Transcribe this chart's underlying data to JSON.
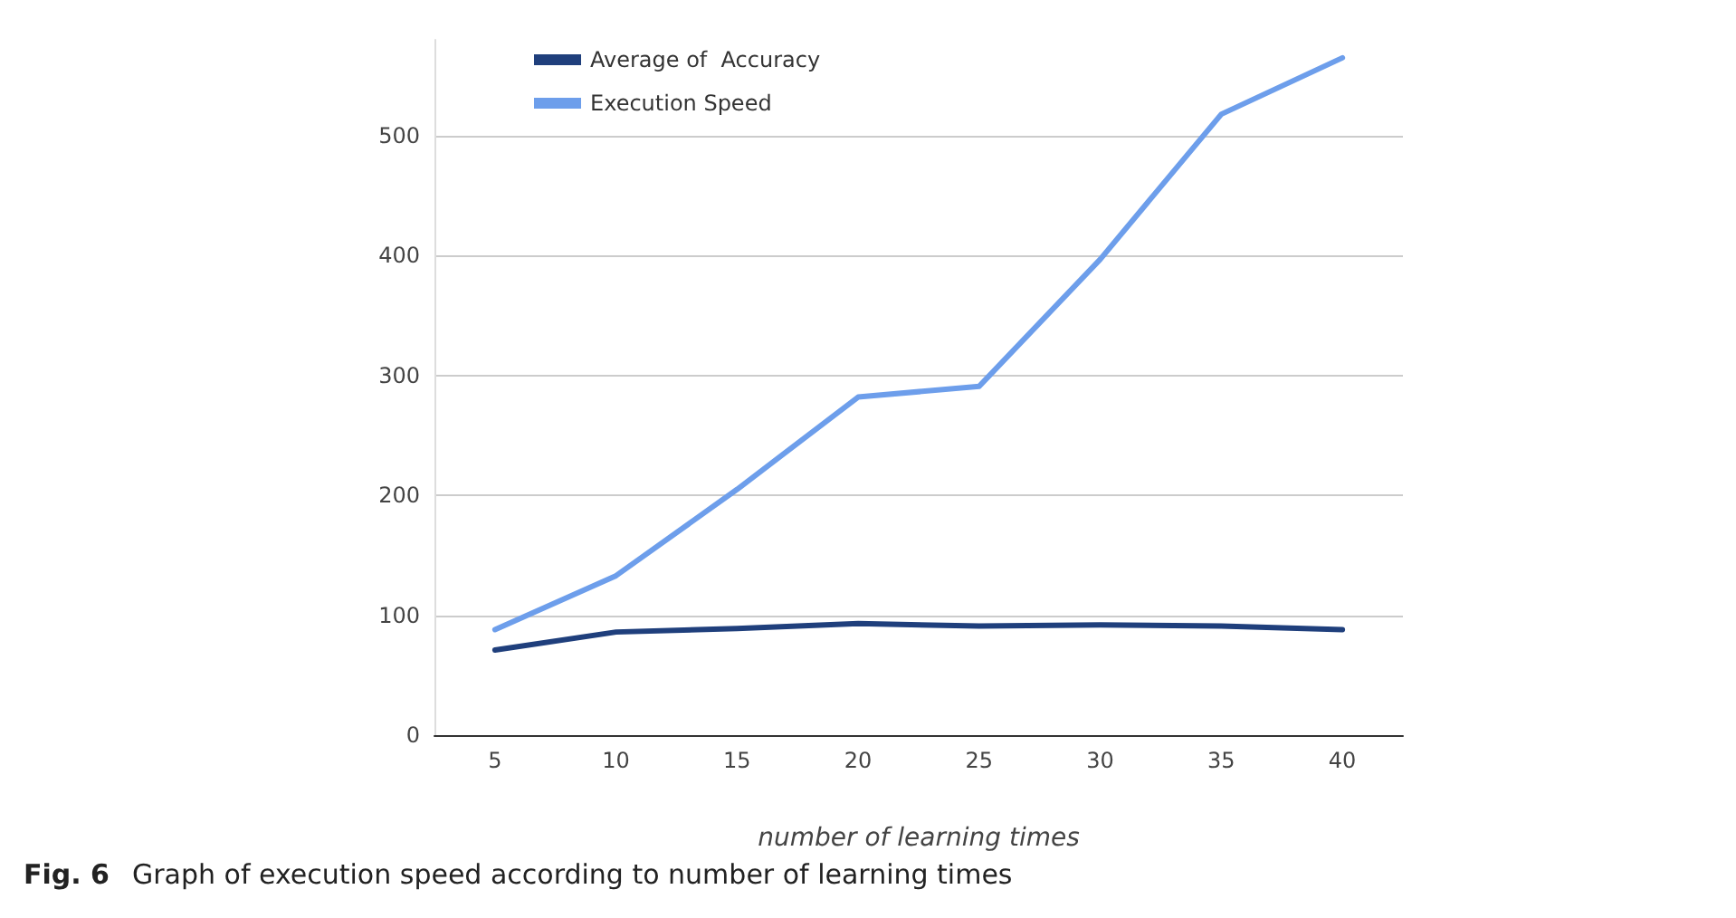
{
  "chart_data": {
    "type": "line",
    "title": "Fig. 6 Graph of execution speed according to number of learning times",
    "xlabel": "number of learning times",
    "categories": [
      "5",
      "10",
      "15",
      "20",
      "25",
      "30",
      "35",
      "40"
    ],
    "series": [
      {
        "name": "Average of  Accuracy",
        "color": "#1f3f7c",
        "values": [
          71,
          86,
          89,
          93,
          91,
          92,
          91,
          88
        ]
      },
      {
        "name": "Execution Speed",
        "color": "#6d9eeb",
        "values": [
          88,
          133,
          205,
          282,
          291,
          397,
          518,
          565
        ]
      }
    ],
    "ylim": [
      0,
      580
    ],
    "yticks": [
      0,
      100,
      200,
      300,
      400,
      500
    ],
    "grid": "y",
    "legend": "top",
    "marker": "none",
    "line_style": "solid"
  }
}
